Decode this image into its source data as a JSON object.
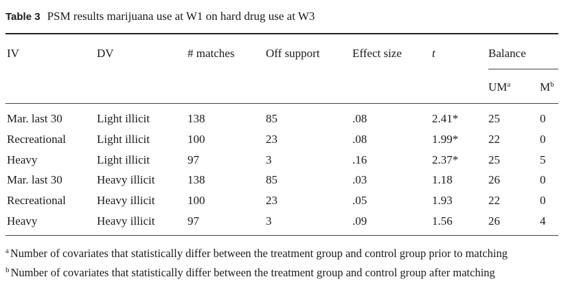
{
  "table": {
    "label": "Table 3",
    "title": "PSM results marijuana use at W1 on hard drug use at W3",
    "headers": {
      "iv": "IV",
      "dv": "DV",
      "matches": "# matches",
      "off_support": "Off support",
      "effect_size": "Effect size",
      "t": "t",
      "balance": "Balance",
      "um": "UM",
      "um_sup": "a",
      "m": "M",
      "m_sup": "b"
    },
    "rows": [
      {
        "iv": "Mar. last 30",
        "dv": "Light illicit",
        "matches": "138",
        "off_support": "85",
        "effect_size": ".08",
        "t": "2.41*",
        "um": "25",
        "m": "0"
      },
      {
        "iv": "Recreational",
        "dv": "Light illicit",
        "matches": "100",
        "off_support": "23",
        "effect_size": ".08",
        "t": "1.99*",
        "um": "22",
        "m": "0"
      },
      {
        "iv": "Heavy",
        "dv": "Light illicit",
        "matches": "97",
        "off_support": "3",
        "effect_size": ".16",
        "t": "2.37*",
        "um": "25",
        "m": "5"
      },
      {
        "iv": "Mar. last 30",
        "dv": "Heavy illicit",
        "matches": "138",
        "off_support": "85",
        "effect_size": ".03",
        "t": "1.18",
        "um": "26",
        "m": "0"
      },
      {
        "iv": "Recreational",
        "dv": "Heavy illicit",
        "matches": "100",
        "off_support": "23",
        "effect_size": ".05",
        "t": "1.93",
        "um": "22",
        "m": "0"
      },
      {
        "iv": "Heavy",
        "dv": "Heavy illicit",
        "matches": "97",
        "off_support": "3",
        "effect_size": ".09",
        "t": "1.56",
        "um": "26",
        "m": "4"
      }
    ],
    "footnotes": [
      {
        "mark": "a",
        "text": "Number of covariates that statistically differ between the treatment group and control group prior to matching"
      },
      {
        "mark": "b",
        "text": "Number of covariates that statistically differ between the treatment group and control group after matching"
      }
    ]
  }
}
